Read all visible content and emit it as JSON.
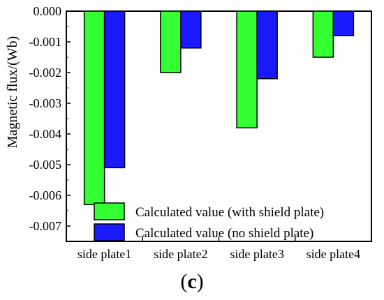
{
  "chart_data": {
    "type": "bar",
    "ylabel": "Magnetic flux/(Wb)",
    "ylim": [
      -0.0075,
      0.0
    ],
    "yticks": [
      "0.000",
      "-0.001",
      "-0.002",
      "-0.003",
      "-0.004",
      "-0.005",
      "-0.006",
      "-0.007"
    ],
    "categories": [
      "side plate1",
      "side plate2",
      "side plate3",
      "side plate4"
    ],
    "series": [
      {
        "name": "Calculated value (with shield plate)",
        "color": "#33ff33",
        "values": [
          -0.0063,
          -0.002,
          -0.0038,
          -0.0015
        ]
      },
      {
        "name": "Calculated value (no shield plate)",
        "color": "#1a1aff",
        "values": [
          -0.0051,
          -0.0012,
          -0.0022,
          -0.0008
        ]
      }
    ],
    "legend_position": "bottom-right",
    "grid": false
  },
  "panel_label": {
    "open": "(",
    "letter": "c",
    "close": ")"
  }
}
